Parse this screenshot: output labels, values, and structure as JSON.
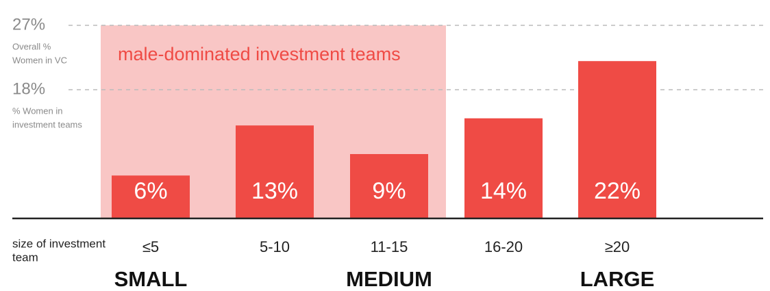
{
  "chart_data": {
    "type": "bar",
    "categories": [
      "≤5",
      "5-10",
      "11-15",
      "16-20",
      "≥20"
    ],
    "values": [
      6,
      13,
      9,
      14,
      22
    ],
    "value_labels": [
      "6%",
      "13%",
      "9%",
      "14%",
      "22%"
    ],
    "color": "#ef4b45",
    "ylim": [
      0,
      27
    ],
    "yticks": [
      {
        "value": 27,
        "label": "27%"
      },
      {
        "value": 18,
        "label": "18%"
      }
    ],
    "ytick_notes": [
      [
        "Overall %",
        "Women in VC"
      ],
      [
        "% Women in",
        "investment teams"
      ]
    ],
    "highlight": {
      "label": "male-dominated investment teams",
      "categories": [
        0,
        2
      ],
      "color": "#f9c6c5",
      "text_color": "#ef4b45"
    },
    "xlabel": [
      "size of investment",
      "team"
    ],
    "groups": [
      {
        "label": "SMALL",
        "category": 0
      },
      {
        "label": "MEDIUM",
        "category": 2
      },
      {
        "label": "LARGE",
        "category": 4
      }
    ]
  }
}
